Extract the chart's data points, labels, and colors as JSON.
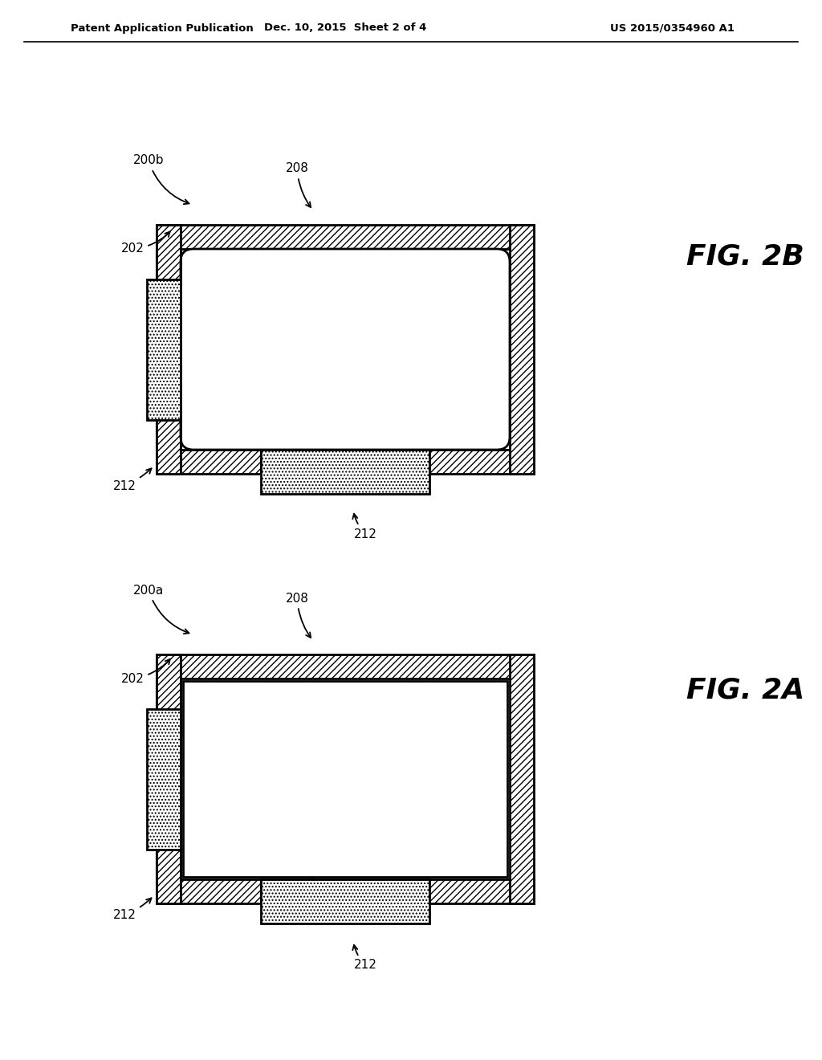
{
  "title_left": "Patent Application Publication",
  "title_mid": "Dec. 10, 2015  Sheet 2 of 4",
  "title_right": "US 2015/0354960 A1",
  "bg_color": "#ffffff",
  "fig2b_label": "FIG. 2B",
  "fig2a_label": "FIG. 2A",
  "label_fontsize": 11,
  "fig_label_fontsize": 26
}
